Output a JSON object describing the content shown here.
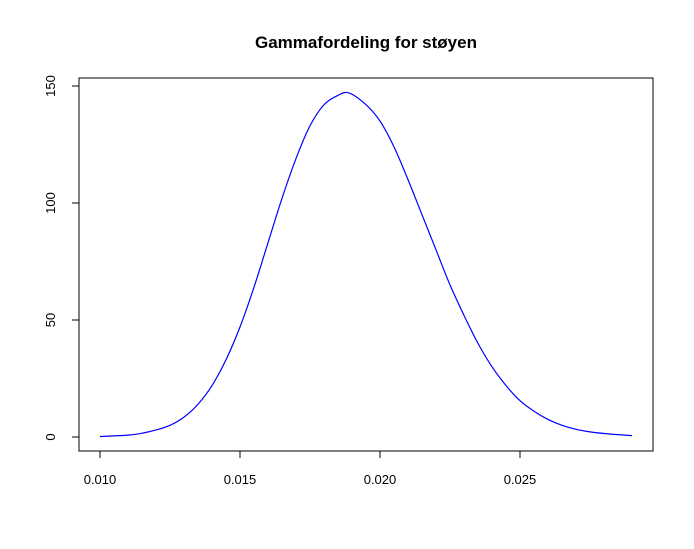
{
  "chart_data": {
    "type": "line",
    "title": "Gammafordeling for støyen",
    "xlabel": "",
    "ylabel": "",
    "xlim": [
      0.01,
      0.029
    ],
    "ylim": [
      0,
      150
    ],
    "x_ticks": [
      0.01,
      0.015,
      0.02,
      0.025
    ],
    "x_tick_labels": [
      "0.010",
      "0.015",
      "0.020",
      "0.025"
    ],
    "y_ticks": [
      0,
      50,
      100,
      150
    ],
    "y_tick_labels": [
      "0",
      "50",
      "100",
      "150"
    ],
    "grid": false,
    "legend": "none",
    "series": [
      {
        "color": "#0000ff",
        "x": [
          0.01,
          0.011,
          0.0115,
          0.012,
          0.0125,
          0.013,
          0.0135,
          0.014,
          0.0145,
          0.015,
          0.0155,
          0.016,
          0.0165,
          0.017,
          0.0175,
          0.018,
          0.0185,
          0.0189,
          0.0195,
          0.02,
          0.0205,
          0.021,
          0.0215,
          0.022,
          0.0225,
          0.023,
          0.0235,
          0.024,
          0.0245,
          0.025,
          0.0255,
          0.026,
          0.0265,
          0.027,
          0.0275,
          0.028,
          0.0285,
          0.029
        ],
        "values": [
          0.2,
          0.8,
          1.6,
          3.0,
          5.0,
          8.5,
          14,
          22,
          33,
          47,
          64,
          83,
          102,
          119,
          133,
          142,
          146,
          147,
          142,
          135,
          124,
          110,
          95,
          80,
          65,
          52,
          40,
          30,
          22,
          15.5,
          11,
          7.5,
          5.0,
          3.3,
          2.2,
          1.5,
          1.0,
          0.6
        ]
      }
    ]
  }
}
